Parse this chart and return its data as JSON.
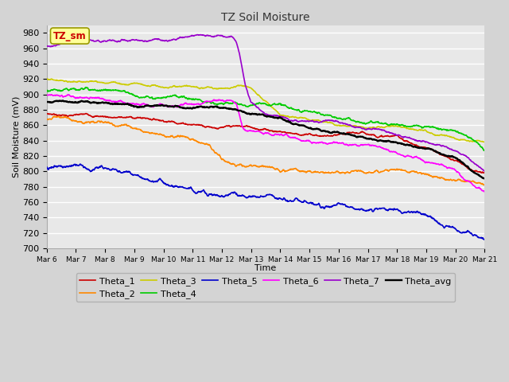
{
  "title": "TZ Soil Moisture",
  "xlabel": "Time",
  "ylabel": "Soil Moisture (mV)",
  "ylim": [
    700,
    990
  ],
  "yticks": [
    700,
    720,
    740,
    760,
    780,
    800,
    820,
    840,
    860,
    880,
    900,
    920,
    940,
    960,
    980
  ],
  "n_days": 15,
  "start_day": 6,
  "colors": {
    "Theta_1": "#cc0000",
    "Theta_2": "#ff8800",
    "Theta_3": "#cccc00",
    "Theta_4": "#00cc00",
    "Theta_5": "#0000cc",
    "Theta_6": "#ff00ff",
    "Theta_7": "#9900cc",
    "Theta_avg": "#000000"
  },
  "fig_bg": "#d4d4d4",
  "plot_bg": "#e8e8e8",
  "grid_color": "#ffffff",
  "legend_box_color": "#ffff99",
  "legend_box_text": "TZ_sm",
  "legend_box_text_color": "#cc0000",
  "figsize": [
    6.4,
    4.8
  ],
  "dpi": 100
}
